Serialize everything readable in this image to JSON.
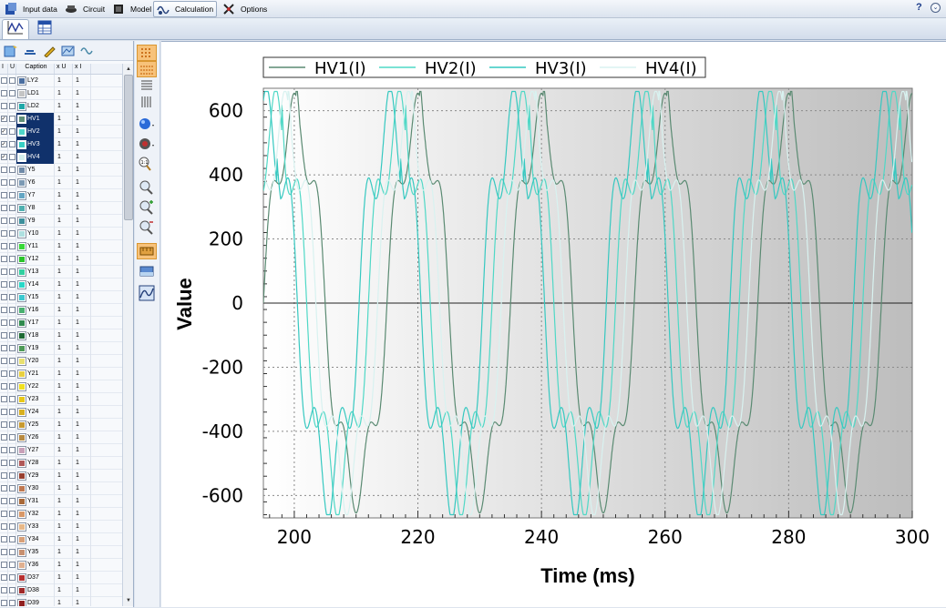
{
  "menu": {
    "items": [
      {
        "label": "Input data",
        "icon": "input-data-icon"
      },
      {
        "label": "Circuit",
        "icon": "circuit-icon"
      },
      {
        "label": "Model",
        "icon": "model-icon"
      },
      {
        "label": "Calculation",
        "icon": "calculation-icon",
        "active": true
      },
      {
        "label": "Options",
        "icon": "options-icon"
      }
    ],
    "help": "?",
    "collapse": "⌄"
  },
  "tabs": [
    {
      "icon": "waveform-tab-icon",
      "active": true
    },
    {
      "icon": "table-tab-icon",
      "active": false
    }
  ],
  "grid": {
    "headers": {
      "i": "I",
      "u": "U",
      "caption": "Caption",
      "xu": "x U",
      "xi": "x I"
    },
    "rows": [
      {
        "caption": "LY2",
        "color": "#4a6ea0",
        "i": false,
        "u": false,
        "xu": "1",
        "xi": "1",
        "selected": false
      },
      {
        "caption": "LD1",
        "color": "#c4c4c4",
        "i": false,
        "u": false,
        "xu": "1",
        "xi": "1",
        "selected": false
      },
      {
        "caption": "LD2",
        "color": "#1fa8a8",
        "i": false,
        "u": false,
        "xu": "1",
        "xi": "1",
        "selected": false
      },
      {
        "caption": "HV1",
        "color": "#5f8f78",
        "i": true,
        "u": false,
        "xu": "1",
        "xi": "1",
        "selected": true
      },
      {
        "caption": "HV2",
        "color": "#4fd6c8",
        "i": true,
        "u": false,
        "xu": "1",
        "xi": "1",
        "selected": true
      },
      {
        "caption": "HV3",
        "color": "#38cfc4",
        "i": true,
        "u": false,
        "xu": "1",
        "xi": "1",
        "selected": true
      },
      {
        "caption": "HV4",
        "color": "#d4efee",
        "i": true,
        "u": false,
        "xu": "1",
        "xi": "1",
        "selected": true
      },
      {
        "caption": "Y5",
        "color": "#6f8aa8",
        "i": false,
        "u": false,
        "xu": "1",
        "xi": "1",
        "selected": false
      },
      {
        "caption": "Y6",
        "color": "#7c9ab4",
        "i": false,
        "u": false,
        "xu": "1",
        "xi": "1",
        "selected": false
      },
      {
        "caption": "Y7",
        "color": "#64a6c4",
        "i": false,
        "u": false,
        "xu": "1",
        "xi": "1",
        "selected": false
      },
      {
        "caption": "Y8",
        "color": "#4fb0b0",
        "i": false,
        "u": false,
        "xu": "1",
        "xi": "1",
        "selected": false
      },
      {
        "caption": "Y9",
        "color": "#3c8f9c",
        "i": false,
        "u": false,
        "xu": "1",
        "xi": "1",
        "selected": false
      },
      {
        "caption": "Y10",
        "color": "#aee0e0",
        "i": false,
        "u": false,
        "xu": "1",
        "xi": "1",
        "selected": false
      },
      {
        "caption": "Y11",
        "color": "#38d838",
        "i": false,
        "u": false,
        "xu": "1",
        "xi": "1",
        "selected": false
      },
      {
        "caption": "Y12",
        "color": "#2ac42a",
        "i": false,
        "u": false,
        "xu": "1",
        "xi": "1",
        "selected": false
      },
      {
        "caption": "Y13",
        "color": "#30d0a0",
        "i": false,
        "u": false,
        "xu": "1",
        "xi": "1",
        "selected": false
      },
      {
        "caption": "Y14",
        "color": "#28d8c8",
        "i": false,
        "u": false,
        "xu": "1",
        "xi": "1",
        "selected": false
      },
      {
        "caption": "Y15",
        "color": "#3cc8d0",
        "i": false,
        "u": false,
        "xu": "1",
        "xi": "1",
        "selected": false
      },
      {
        "caption": "Y16",
        "color": "#48b070",
        "i": false,
        "u": false,
        "xu": "1",
        "xi": "1",
        "selected": false
      },
      {
        "caption": "Y17",
        "color": "#2f8a4e",
        "i": false,
        "u": false,
        "xu": "1",
        "xi": "1",
        "selected": false
      },
      {
        "caption": "Y18",
        "color": "#1e6a34",
        "i": false,
        "u": false,
        "xu": "1",
        "xi": "1",
        "selected": false
      },
      {
        "caption": "Y19",
        "color": "#4e9a56",
        "i": false,
        "u": false,
        "xu": "1",
        "xi": "1",
        "selected": false
      },
      {
        "caption": "Y20",
        "color": "#e8e070",
        "i": false,
        "u": false,
        "xu": "1",
        "xi": "1",
        "selected": false
      },
      {
        "caption": "Y21",
        "color": "#e8d040",
        "i": false,
        "u": false,
        "xu": "1",
        "xi": "1",
        "selected": false
      },
      {
        "caption": "Y22",
        "color": "#f0e020",
        "i": false,
        "u": false,
        "xu": "1",
        "xi": "1",
        "selected": false
      },
      {
        "caption": "Y23",
        "color": "#e8c818",
        "i": false,
        "u": false,
        "xu": "1",
        "xi": "1",
        "selected": false
      },
      {
        "caption": "Y24",
        "color": "#d8b020",
        "i": false,
        "u": false,
        "xu": "1",
        "xi": "1",
        "selected": false
      },
      {
        "caption": "Y25",
        "color": "#c89a30",
        "i": false,
        "u": false,
        "xu": "1",
        "xi": "1",
        "selected": false
      },
      {
        "caption": "Y26",
        "color": "#b88a40",
        "i": false,
        "u": false,
        "xu": "1",
        "xi": "1",
        "selected": false
      },
      {
        "caption": "Y27",
        "color": "#c8a0b8",
        "i": false,
        "u": false,
        "xu": "1",
        "xi": "1",
        "selected": false
      },
      {
        "caption": "Y28",
        "color": "#b05858",
        "i": false,
        "u": false,
        "xu": "1",
        "xi": "1",
        "selected": false
      },
      {
        "caption": "Y29",
        "color": "#984030",
        "i": false,
        "u": false,
        "xu": "1",
        "xi": "1",
        "selected": false
      },
      {
        "caption": "Y30",
        "color": "#c07850",
        "i": false,
        "u": false,
        "xu": "1",
        "xi": "1",
        "selected": false
      },
      {
        "caption": "Y31",
        "color": "#a86838",
        "i": false,
        "u": false,
        "xu": "1",
        "xi": "1",
        "selected": false
      },
      {
        "caption": "Y32",
        "color": "#d89868",
        "i": false,
        "u": false,
        "xu": "1",
        "xi": "1",
        "selected": false
      },
      {
        "caption": "Y33",
        "color": "#e8b888",
        "i": false,
        "u": false,
        "xu": "1",
        "xi": "1",
        "selected": false
      },
      {
        "caption": "Y34",
        "color": "#d8a078",
        "i": false,
        "u": false,
        "xu": "1",
        "xi": "1",
        "selected": false
      },
      {
        "caption": "Y35",
        "color": "#c89070",
        "i": false,
        "u": false,
        "xu": "1",
        "xi": "1",
        "selected": false
      },
      {
        "caption": "Y36",
        "color": "#e0b090",
        "i": false,
        "u": false,
        "xu": "1",
        "xi": "1",
        "selected": false
      },
      {
        "caption": "D37",
        "color": "#b83030",
        "i": false,
        "u": false,
        "xu": "1",
        "xi": "1",
        "selected": false
      },
      {
        "caption": "D38",
        "color": "#a02828",
        "i": false,
        "u": false,
        "xu": "1",
        "xi": "1",
        "selected": false
      },
      {
        "caption": "D39",
        "color": "#902020",
        "i": false,
        "u": false,
        "xu": "1",
        "xi": "1",
        "selected": false
      }
    ]
  },
  "chart_data": {
    "type": "line",
    "xlabel": "Time (ms)",
    "ylabel": "Value",
    "xlim": [
      195,
      300
    ],
    "ylim": [
      -670,
      670
    ],
    "xticks": [
      "200",
      "220",
      "240",
      "260",
      "280",
      "300"
    ],
    "yticks": [
      "600",
      "400",
      "200",
      "0",
      "-200",
      "-400",
      "-600"
    ],
    "grid": true,
    "legend_position": "top-left",
    "period_ms": 20,
    "peak": 640,
    "series": [
      {
        "name": "HV1(I)",
        "color": "#5a8a72",
        "phase_ms": 0.0,
        "harmonic5": 0.17,
        "spike_height": 60,
        "spike_time_ms": 200.3
      },
      {
        "name": "HV2(I)",
        "color": "#4fd8c6",
        "phase_ms": -3.0,
        "harmonic5": 0.22,
        "spike_height": 90,
        "spike_time_ms": 198.0
      },
      {
        "name": "HV3(I)",
        "color": "#35c8c0",
        "phase_ms": -4.5,
        "harmonic5": 0.24,
        "spike_height": 80,
        "spike_time_ms": 197.2
      },
      {
        "name": "HV4(I)",
        "color": "#d8f2f0",
        "phase_ms": -1.5,
        "harmonic5": 0.2,
        "spike_height": 70,
        "spike_time_ms": 199.0
      }
    ]
  }
}
